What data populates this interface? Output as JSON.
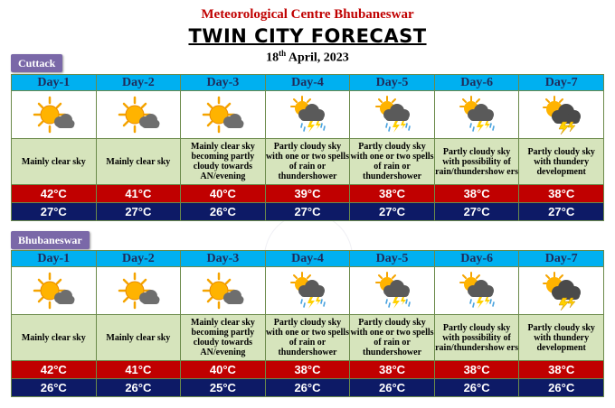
{
  "header": {
    "org": "Meteorological Centre Bhubaneswar",
    "title": "TWIN CITY FORECAST",
    "date_day": "18",
    "date_suffix": "th",
    "date_rest": " April, 2023"
  },
  "cities": [
    {
      "name": "Cuttack",
      "days": [
        {
          "label": "Day-1",
          "icon": "sun-cloud-icon",
          "desc": "Mainly clear sky",
          "max": "42°C",
          "min": "27°C"
        },
        {
          "label": "Day-2",
          "icon": "sun-cloud-icon",
          "desc": "Mainly clear sky",
          "max": "41°C",
          "min": "27°C"
        },
        {
          "label": "Day-3",
          "icon": "sun-cloud-icon",
          "desc": "Mainly clear sky becoming partly cloudy towards AN/evening",
          "max": "40°C",
          "min": "26°C"
        },
        {
          "label": "Day-4",
          "icon": "rain-thunder-icon",
          "desc": "Partly cloudy sky with one or two spells of rain or thundershower",
          "max": "39°C",
          "min": "27°C"
        },
        {
          "label": "Day-5",
          "icon": "rain-thunder-icon",
          "desc": "Partly cloudy sky with one or two spells of rain or thundershower",
          "max": "38°C",
          "min": "27°C"
        },
        {
          "label": "Day-6",
          "icon": "rain-thunder-icon",
          "desc": "Partly cloudy sky with possibility of rain/thundershow ers",
          "max": "38°C",
          "min": "27°C"
        },
        {
          "label": "Day-7",
          "icon": "thunder-cloud-icon",
          "desc": "Partly cloudy sky with thundery development",
          "max": "38°C",
          "min": "27°C"
        }
      ]
    },
    {
      "name": "Bhubaneswar",
      "days": [
        {
          "label": "Day-1",
          "icon": "sun-cloud-icon",
          "desc": "Mainly clear sky",
          "max": "42°C",
          "min": "26°C"
        },
        {
          "label": "Day-2",
          "icon": "sun-cloud-icon",
          "desc": "Mainly clear sky",
          "max": "41°C",
          "min": "26°C"
        },
        {
          "label": "Day-3",
          "icon": "sun-cloud-icon",
          "desc": "Mainly clear sky becoming partly cloudy towards AN/evening",
          "max": "40°C",
          "min": "25°C"
        },
        {
          "label": "Day-4",
          "icon": "rain-thunder-icon",
          "desc": "Partly cloudy sky with one or two spells of rain or thundershower",
          "max": "38°C",
          "min": "26°C"
        },
        {
          "label": "Day-5",
          "icon": "rain-thunder-icon",
          "desc": "Partly cloudy sky with one or two spells of rain or thundershower",
          "max": "38°C",
          "min": "26°C"
        },
        {
          "label": "Day-6",
          "icon": "rain-thunder-icon",
          "desc": "Partly cloudy sky with possibility of rain/thundershow ers",
          "max": "38°C",
          "min": "26°C"
        },
        {
          "label": "Day-7",
          "icon": "thunder-cloud-icon",
          "desc": "Partly cloudy sky with thundery development",
          "max": "38°C",
          "min": "26°C"
        }
      ]
    }
  ],
  "colors": {
    "day_header": "#00b0f0",
    "desc_bg": "#d6e4bc",
    "max_bg": "#c00000",
    "min_bg": "#0d1a66",
    "city_tab": "#7a68a8",
    "org_text": "#c00000"
  }
}
